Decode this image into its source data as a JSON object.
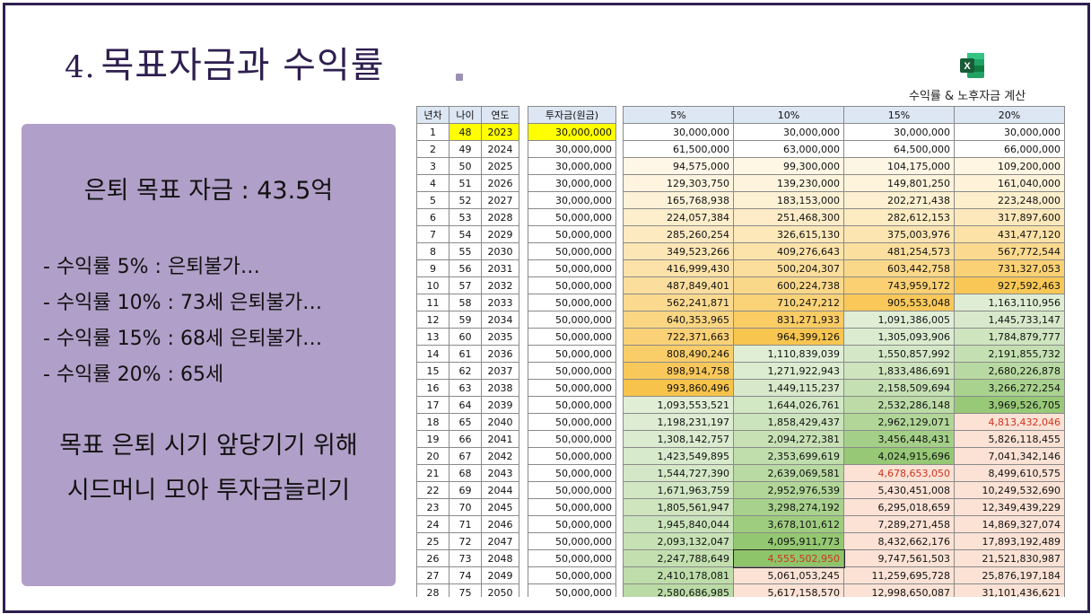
{
  "slide": {
    "title_number": "4.",
    "title_text": "목표자금과 수익률",
    "excel_caption": "수익률 & 노후자금 계산",
    "excel_icon": "excel-icon"
  },
  "panel": {
    "target": "은퇴 목표 자금 : 43.5억",
    "bullets": [
      "- 수익률 5% : 은퇴불가…",
      "- 수익률 10% : 73세 은퇴불가…",
      "- 수익률 15% : 68세 은퇴불가…",
      "- 수익률 20% : 65세"
    ],
    "summary_line1": "목표 은퇴 시기 앞당기기 위해",
    "summary_line2": "시드머니 모아 투자금늘리기"
  },
  "table": {
    "headers": [
      "년차",
      "나이",
      "연도",
      "투자금(원금)",
      "5%",
      "10%",
      "15%",
      "20%"
    ],
    "rows": [
      [
        "1",
        "48",
        "2023",
        "30,000,000",
        "30,000,000",
        "30,000,000",
        "30,000,000",
        "30,000,000"
      ],
      [
        "2",
        "49",
        "2024",
        "30,000,000",
        "61,500,000",
        "63,000,000",
        "64,500,000",
        "66,000,000"
      ],
      [
        "3",
        "50",
        "2025",
        "30,000,000",
        "94,575,000",
        "99,300,000",
        "104,175,000",
        "109,200,000"
      ],
      [
        "4",
        "51",
        "2026",
        "30,000,000",
        "129,303,750",
        "139,230,000",
        "149,801,250",
        "161,040,000"
      ],
      [
        "5",
        "52",
        "2027",
        "30,000,000",
        "165,768,938",
        "183,153,000",
        "202,271,438",
        "223,248,000"
      ],
      [
        "6",
        "53",
        "2028",
        "50,000,000",
        "224,057,384",
        "251,468,300",
        "282,612,153",
        "317,897,600"
      ],
      [
        "7",
        "54",
        "2029",
        "50,000,000",
        "285,260,254",
        "326,615,130",
        "375,003,976",
        "431,477,120"
      ],
      [
        "8",
        "55",
        "2030",
        "50,000,000",
        "349,523,266",
        "409,276,643",
        "481,254,573",
        "567,772,544"
      ],
      [
        "9",
        "56",
        "2031",
        "50,000,000",
        "416,999,430",
        "500,204,307",
        "603,442,758",
        "731,327,053"
      ],
      [
        "10",
        "57",
        "2032",
        "50,000,000",
        "487,849,401",
        "600,224,738",
        "743,959,172",
        "927,592,463"
      ],
      [
        "11",
        "58",
        "2033",
        "50,000,000",
        "562,241,871",
        "710,247,212",
        "905,553,048",
        "1,163,110,956"
      ],
      [
        "12",
        "59",
        "2034",
        "50,000,000",
        "640,353,965",
        "831,271,933",
        "1,091,386,005",
        "1,445,733,147"
      ],
      [
        "13",
        "60",
        "2035",
        "50,000,000",
        "722,371,663",
        "964,399,126",
        "1,305,093,906",
        "1,784,879,777"
      ],
      [
        "14",
        "61",
        "2036",
        "50,000,000",
        "808,490,246",
        "1,110,839,039",
        "1,550,857,992",
        "2,191,855,732"
      ],
      [
        "15",
        "62",
        "2037",
        "50,000,000",
        "898,914,758",
        "1,271,922,943",
        "1,833,486,691",
        "2,680,226,878"
      ],
      [
        "16",
        "63",
        "2038",
        "50,000,000",
        "993,860,496",
        "1,449,115,237",
        "2,158,509,694",
        "3,266,272,254"
      ],
      [
        "17",
        "64",
        "2039",
        "50,000,000",
        "1,093,553,521",
        "1,644,026,761",
        "2,532,286,148",
        "3,969,526,705"
      ],
      [
        "18",
        "65",
        "2040",
        "50,000,000",
        "1,198,231,197",
        "1,858,429,437",
        "2,962,129,071",
        "4,813,432,046"
      ],
      [
        "19",
        "66",
        "2041",
        "50,000,000",
        "1,308,142,757",
        "2,094,272,381",
        "3,456,448,431",
        "5,826,118,455"
      ],
      [
        "20",
        "67",
        "2042",
        "50,000,000",
        "1,423,549,895",
        "2,353,699,619",
        "4,024,915,696",
        "7,041,342,146"
      ],
      [
        "21",
        "68",
        "2043",
        "50,000,000",
        "1,544,727,390",
        "2,639,069,581",
        "4,678,653,050",
        "8,499,610,575"
      ],
      [
        "22",
        "69",
        "2044",
        "50,000,000",
        "1,671,963,759",
        "2,952,976,539",
        "5,430,451,008",
        "10,249,532,690"
      ],
      [
        "23",
        "70",
        "2045",
        "50,000,000",
        "1,805,561,947",
        "3,298,274,192",
        "6,295,018,659",
        "12,349,439,229"
      ],
      [
        "24",
        "71",
        "2046",
        "50,000,000",
        "1,945,840,044",
        "3,678,101,612",
        "7,289,271,458",
        "14,869,327,074"
      ],
      [
        "25",
        "72",
        "2047",
        "50,000,000",
        "2,093,132,047",
        "4,095,911,773",
        "8,432,662,176",
        "17,893,192,489"
      ],
      [
        "26",
        "73",
        "2048",
        "50,000,000",
        "2,247,788,649",
        "4,555,502,950",
        "9,747,561,503",
        "21,521,830,987"
      ],
      [
        "27",
        "74",
        "2049",
        "50,000,000",
        "2,410,178,081",
        "5,061,053,245",
        "11,259,695,728",
        "25,876,197,184"
      ],
      [
        "28",
        "75",
        "2050",
        "50,000,000",
        "2,580,686,985",
        "5,617,158,570",
        "12,998,650,087",
        "31,101,436,621"
      ]
    ],
    "highlight_row_index": 0,
    "target_cells": [
      {
        "row": 17,
        "col": "20%"
      },
      {
        "row": 20,
        "col": "15%"
      },
      {
        "row": 25,
        "col": "10%"
      }
    ],
    "colors": {
      "header_fill": "#dde6f3",
      "yellow_highlight": "#ffff00",
      "target_text": "#d0321f",
      "scale_low": "#ffffff",
      "scale_orange": "#f8c34a",
      "scale_green_light": "#e2efd9",
      "scale_green_dark": "#8ec46a",
      "scale_pink": "#fbe2d5"
    }
  }
}
